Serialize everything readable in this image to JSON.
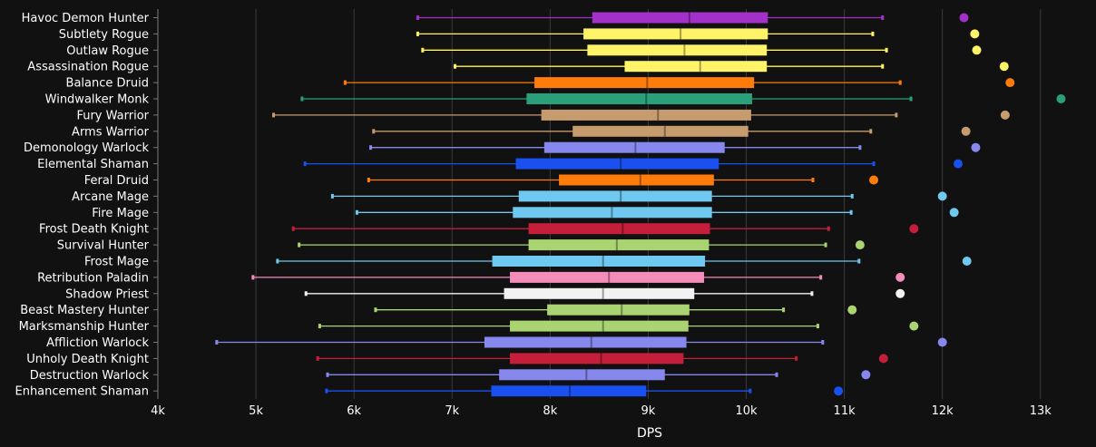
{
  "chart_data": {
    "type": "box",
    "orientation": "horizontal",
    "xlabel": "DPS",
    "xlim": [
      4000,
      13400
    ],
    "x_ticks": [
      {
        "value": 4000,
        "label": "4k"
      },
      {
        "value": 5000,
        "label": "5k"
      },
      {
        "value": 6000,
        "label": "6k"
      },
      {
        "value": 7000,
        "label": "7k"
      },
      {
        "value": 8000,
        "label": "8k"
      },
      {
        "value": 9000,
        "label": "9k"
      },
      {
        "value": 10000,
        "label": "10k"
      },
      {
        "value": 11000,
        "label": "11k"
      },
      {
        "value": 12000,
        "label": "12k"
      },
      {
        "value": 13000,
        "label": "13k"
      }
    ],
    "grid": true,
    "series": [
      {
        "name": "Havoc Demon Hunter",
        "color": "#a330c9",
        "whisker_low": 6650,
        "q1": 8430,
        "median": 9420,
        "q3": 10220,
        "whisker_high": 11390,
        "outlier": 12220
      },
      {
        "name": "Subtlety Rogue",
        "color": "#fff468",
        "whisker_low": 6650,
        "q1": 8340,
        "median": 9330,
        "q3": 10220,
        "whisker_high": 11290,
        "outlier": 12330
      },
      {
        "name": "Outlaw Rogue",
        "color": "#fff468",
        "whisker_low": 6700,
        "q1": 8380,
        "median": 9370,
        "q3": 10210,
        "whisker_high": 11430,
        "outlier": 12350
      },
      {
        "name": "Assassination Rogue",
        "color": "#fff468",
        "whisker_low": 7030,
        "q1": 8760,
        "median": 9530,
        "q3": 10210,
        "whisker_high": 11390,
        "outlier": 12630
      },
      {
        "name": "Balance Druid",
        "color": "#ff7c0a",
        "whisker_low": 5910,
        "q1": 7840,
        "median": 8990,
        "q3": 10080,
        "whisker_high": 11570,
        "outlier": 12690
      },
      {
        "name": "Windwalker Monk",
        "color": "#2aa07a",
        "whisker_low": 5470,
        "q1": 7760,
        "median": 8980,
        "q3": 10060,
        "whisker_high": 11680,
        "outlier": 13210
      },
      {
        "name": "Fury Warrior",
        "color": "#c69b6d",
        "whisker_low": 5180,
        "q1": 7910,
        "median": 9100,
        "q3": 10050,
        "whisker_high": 11530,
        "outlier": 12640
      },
      {
        "name": "Arms Warrior",
        "color": "#c69b6d",
        "whisker_low": 6200,
        "q1": 8230,
        "median": 9170,
        "q3": 10020,
        "whisker_high": 11270,
        "outlier": 12240
      },
      {
        "name": "Demonology Warlock",
        "color": "#8788ee",
        "whisker_low": 6170,
        "q1": 7940,
        "median": 8870,
        "q3": 9780,
        "whisker_high": 11160,
        "outlier": 12340
      },
      {
        "name": "Elemental Shaman",
        "color": "#1a4ff0",
        "whisker_low": 5500,
        "q1": 7650,
        "median": 8720,
        "q3": 9720,
        "whisker_high": 11300,
        "outlier": 12160
      },
      {
        "name": "Feral Druid",
        "color": "#ff7c0a",
        "whisker_low": 6150,
        "q1": 8090,
        "median": 8920,
        "q3": 9670,
        "whisker_high": 10680,
        "outlier": 11300
      },
      {
        "name": "Arcane Mage",
        "color": "#6fc8f0",
        "whisker_low": 5780,
        "q1": 7680,
        "median": 8720,
        "q3": 9650,
        "whisker_high": 11080,
        "outlier": 12000
      },
      {
        "name": "Fire Mage",
        "color": "#6fc8f0",
        "whisker_low": 6030,
        "q1": 7620,
        "median": 8630,
        "q3": 9650,
        "whisker_high": 11070,
        "outlier": 12120
      },
      {
        "name": "Frost Death Knight",
        "color": "#c41e3a",
        "whisker_low": 5380,
        "q1": 7780,
        "median": 8740,
        "q3": 9630,
        "whisker_high": 10840,
        "outlier": 11710
      },
      {
        "name": "Survival Hunter",
        "color": "#aad372",
        "whisker_low": 5440,
        "q1": 7780,
        "median": 8680,
        "q3": 9620,
        "whisker_high": 10810,
        "outlier": 11160
      },
      {
        "name": "Frost Mage",
        "color": "#6fc8f0",
        "whisker_low": 5220,
        "q1": 7410,
        "median": 8540,
        "q3": 9580,
        "whisker_high": 11150,
        "outlier": 12250
      },
      {
        "name": "Retribution Paladin",
        "color": "#f48cba",
        "whisker_low": 4970,
        "q1": 7590,
        "median": 8600,
        "q3": 9570,
        "whisker_high": 10760,
        "outlier": 11570
      },
      {
        "name": "Shadow Priest",
        "color": "#f2f2f2",
        "whisker_low": 5510,
        "q1": 7530,
        "median": 8540,
        "q3": 9470,
        "whisker_high": 10670,
        "outlier": 11570
      },
      {
        "name": "Beast Mastery Hunter",
        "color": "#aad372",
        "whisker_low": 6220,
        "q1": 7970,
        "median": 8730,
        "q3": 9420,
        "whisker_high": 10380,
        "outlier": 11080
      },
      {
        "name": "Marksmanship Hunter",
        "color": "#aad372",
        "whisker_low": 5650,
        "q1": 7590,
        "median": 8540,
        "q3": 9410,
        "whisker_high": 10730,
        "outlier": 11710
      },
      {
        "name": "Affliction Warlock",
        "color": "#8788ee",
        "whisker_low": 4600,
        "q1": 7330,
        "median": 8420,
        "q3": 9390,
        "whisker_high": 10780,
        "outlier": 12000
      },
      {
        "name": "Unholy Death Knight",
        "color": "#c41e3a",
        "whisker_low": 5630,
        "q1": 7590,
        "median": 8520,
        "q3": 9360,
        "whisker_high": 10510,
        "outlier": 11400
      },
      {
        "name": "Destruction Warlock",
        "color": "#8788ee",
        "whisker_low": 5730,
        "q1": 7480,
        "median": 8370,
        "q3": 9170,
        "whisker_high": 10310,
        "outlier": 11220
      },
      {
        "name": "Enhancement Shaman",
        "color": "#1a4ff0",
        "whisker_low": 5720,
        "q1": 7400,
        "median": 8200,
        "q3": 8980,
        "whisker_high": 10040,
        "outlier": 10940
      }
    ]
  }
}
